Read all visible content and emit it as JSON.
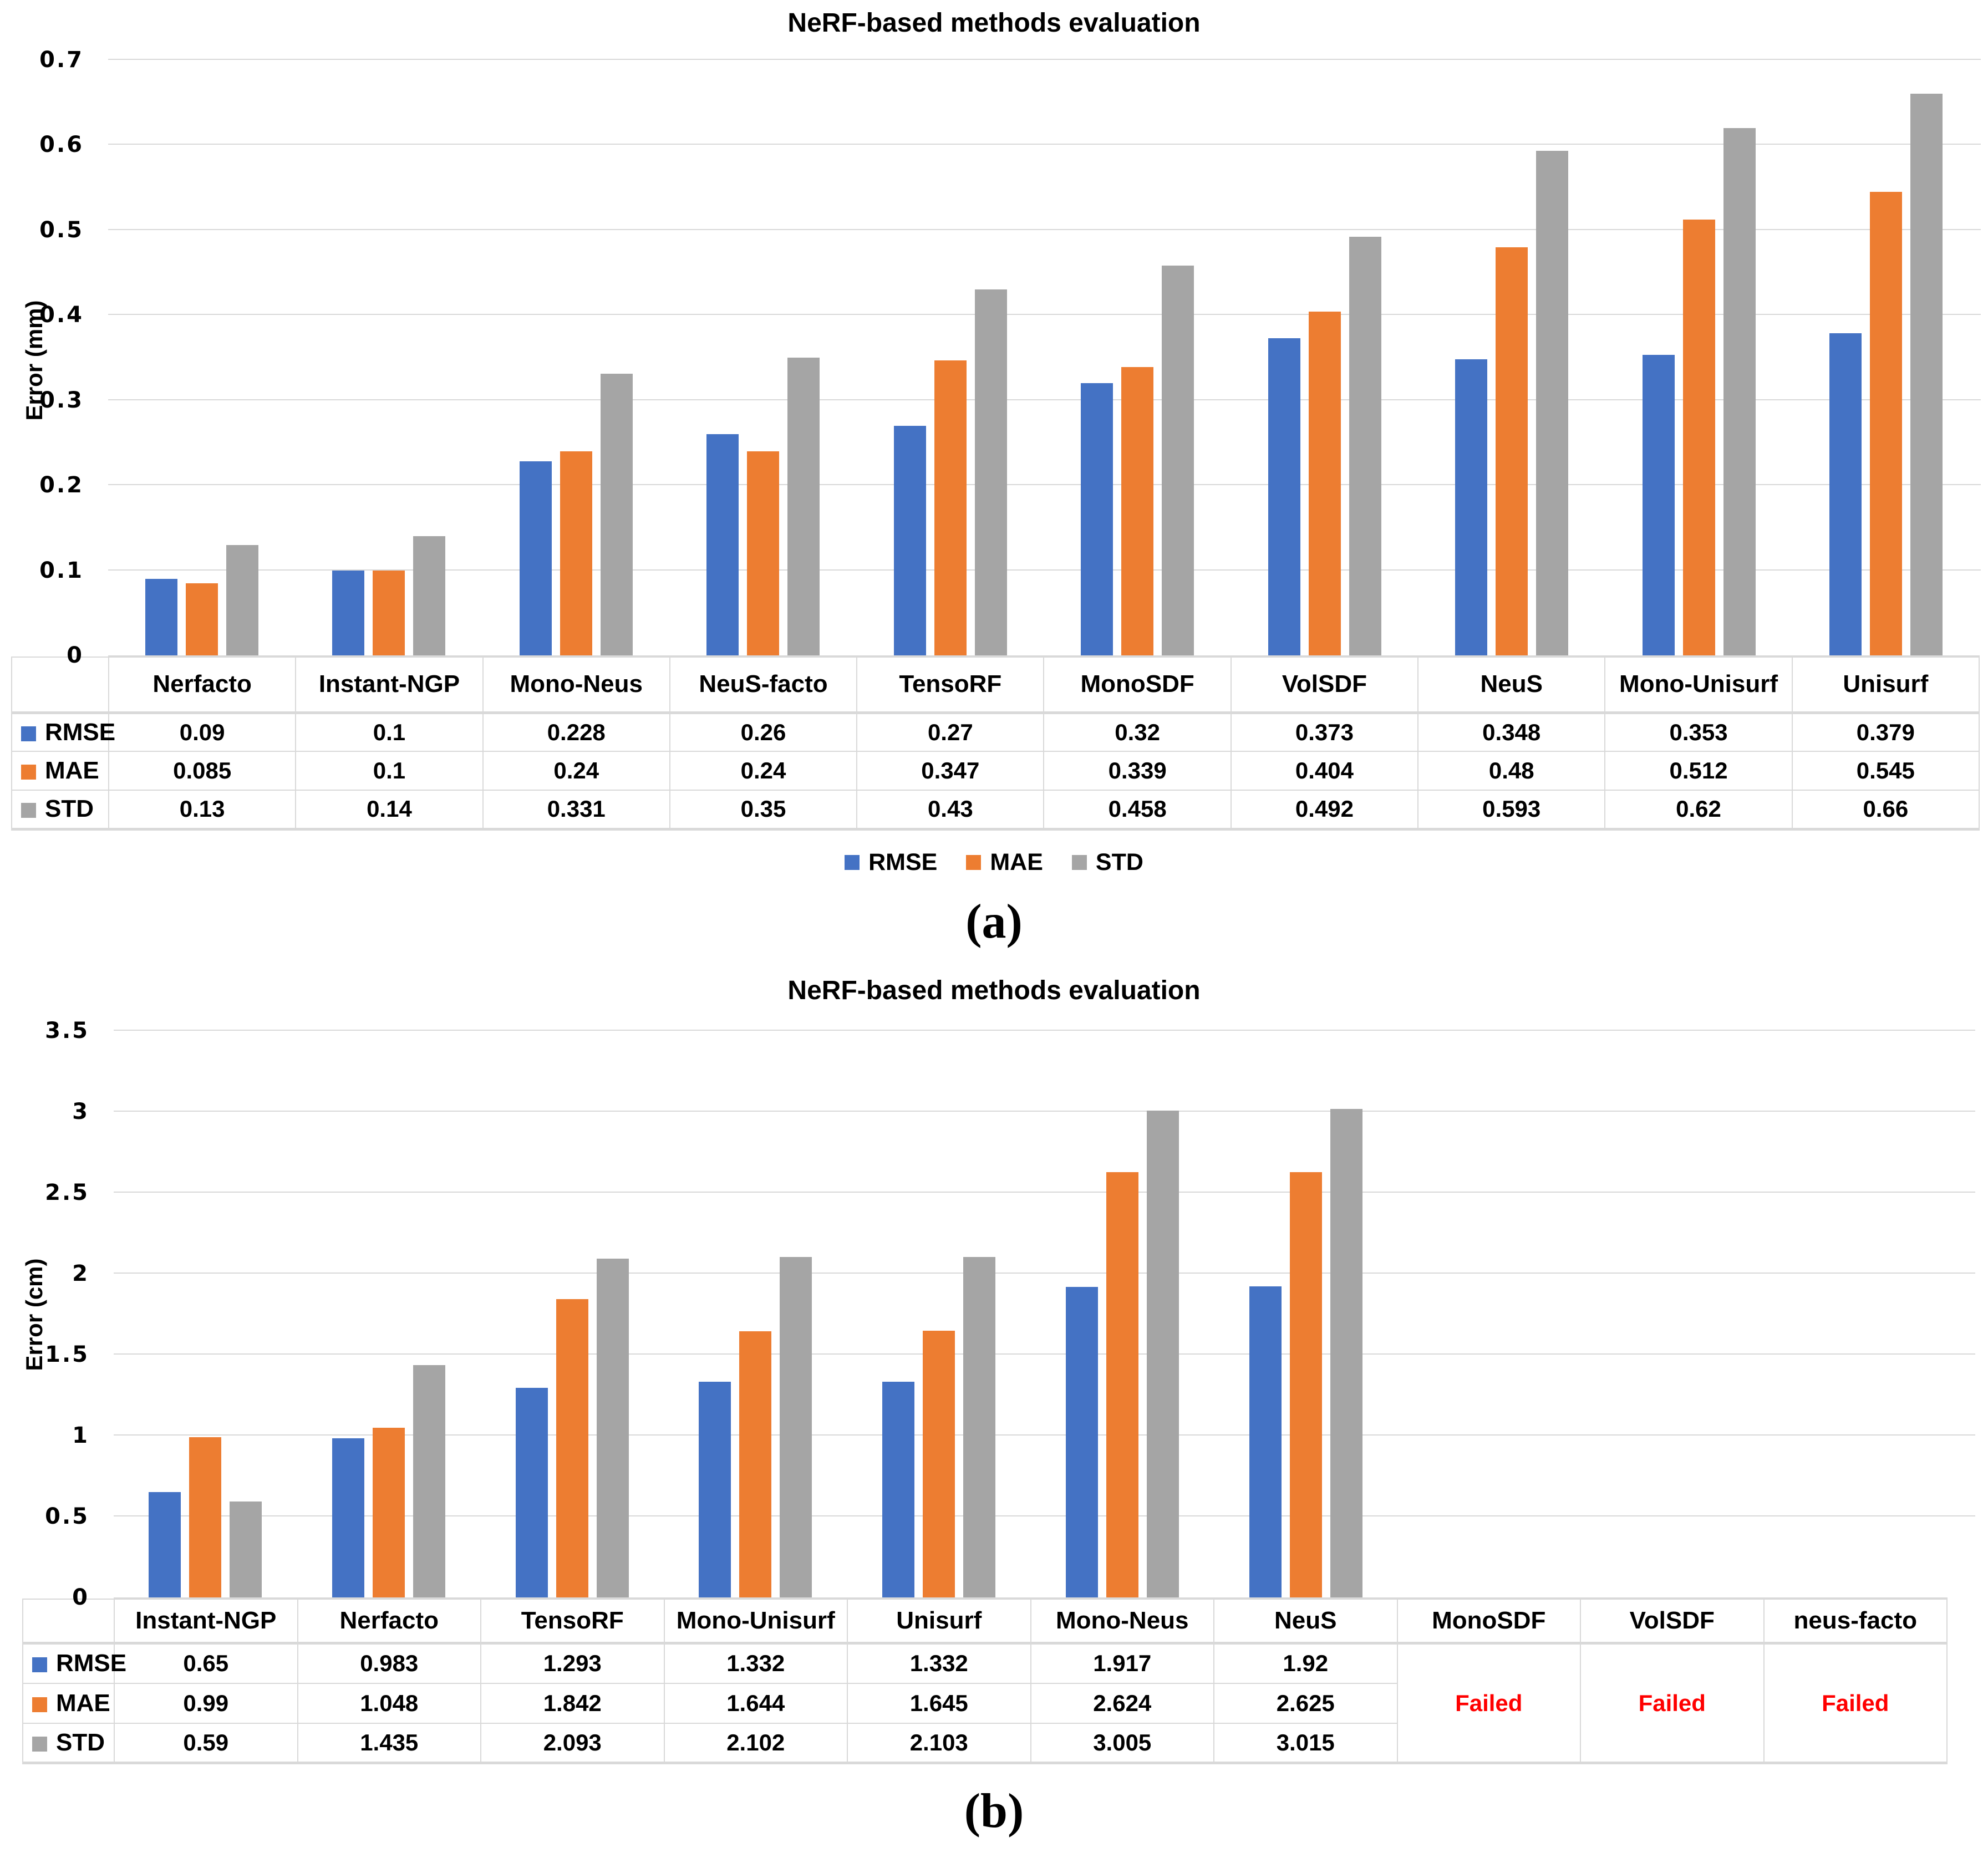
{
  "figure": {
    "panels": [
      {
        "caption": "(a)",
        "chart_data": {
          "type": "bar",
          "title": "NeRF-based methods evaluation",
          "xlabel": "",
          "ylabel": "Error (mm)",
          "ylim": [
            0,
            0.7
          ],
          "grid": true,
          "legend_position": "bottom",
          "yticks": [
            {
              "label": "0.7",
              "value": 0.7
            },
            {
              "label": "0.6",
              "value": 0.6
            },
            {
              "label": "0.5",
              "value": 0.5
            },
            {
              "label": "0.4",
              "value": 0.4
            },
            {
              "label": "0.3",
              "value": 0.3
            },
            {
              "label": "0.2",
              "value": 0.2
            },
            {
              "label": "0.1",
              "value": 0.1
            },
            {
              "label": "0",
              "value": 0
            }
          ],
          "categories": [
            "Nerfacto",
            "Instant-NGP",
            "Mono-Neus",
            "NeuS-facto",
            "TensoRF",
            "MonoSDF",
            "VolSDF",
            "NeuS",
            "Mono-Unisurf",
            "Unisurf"
          ],
          "series": [
            {
              "name": "RMSE",
              "color": "#4472C4",
              "values": [
                0.09,
                0.1,
                0.228,
                0.26,
                0.27,
                0.32,
                0.373,
                0.348,
                0.353,
                0.379
              ]
            },
            {
              "name": "MAE",
              "color": "#ED7D31",
              "values": [
                0.085,
                0.1,
                0.24,
                0.24,
                0.347,
                0.339,
                0.404,
                0.48,
                0.512,
                0.545
              ]
            },
            {
              "name": "STD",
              "color": "#A5A5A5",
              "values": [
                0.13,
                0.14,
                0.331,
                0.35,
                0.43,
                0.458,
                0.492,
                0.593,
                0.62,
                0.66
              ]
            }
          ]
        },
        "table": {
          "rows": [
            {
              "label": "RMSE",
              "color": "#4472C4",
              "cells": [
                "0.09",
                "0.1",
                "0.228",
                "0.26",
                "0.27",
                "0.32",
                "0.373",
                "0.348",
                "0.353",
                "0.379"
              ]
            },
            {
              "label": "MAE",
              "color": "#ED7D31",
              "cells": [
                "0.085",
                "0.1",
                "0.24",
                "0.24",
                "0.347",
                "0.339",
                "0.404",
                "0.48",
                "0.512",
                "0.545"
              ]
            },
            {
              "label": "STD",
              "color": "#A5A5A5",
              "cells": [
                "0.13",
                "0.14",
                "0.331",
                "0.35",
                "0.43",
                "0.458",
                "0.492",
                "0.593",
                "0.62",
                "0.66"
              ]
            }
          ]
        },
        "legend": {
          "items": [
            {
              "label": "RMSE",
              "color": "#4472C4"
            },
            {
              "label": "MAE",
              "color": "#ED7D31"
            },
            {
              "label": "STD",
              "color": "#A5A5A5"
            }
          ]
        }
      },
      {
        "caption": "(b)",
        "chart_data": {
          "type": "bar",
          "title": "NeRF-based methods evaluation",
          "xlabel": "",
          "ylabel": "Error (cm)",
          "ylim": [
            0,
            3.5
          ],
          "grid": true,
          "legend_position": "none",
          "yticks": [
            {
              "label": "3.5",
              "value": 3.5
            },
            {
              "label": "3",
              "value": 3
            },
            {
              "label": "2.5",
              "value": 2.5
            },
            {
              "label": "2",
              "value": 2
            },
            {
              "label": "1.5",
              "value": 1.5
            },
            {
              "label": "1",
              "value": 1
            },
            {
              "label": "0.5",
              "value": 0.5
            },
            {
              "label": "0",
              "value": 0
            }
          ],
          "categories": [
            "Instant-NGP",
            "Nerfacto",
            "TensoRF",
            "Mono-Unisurf",
            "Unisurf",
            "Mono-Neus",
            "NeuS",
            "MonoSDF",
            "VolSDF",
            "neus-facto"
          ],
          "series": [
            {
              "name": "RMSE",
              "color": "#4472C4",
              "values": [
                0.65,
                0.983,
                1.293,
                1.332,
                1.332,
                1.917,
                1.92,
                null,
                null,
                null
              ]
            },
            {
              "name": "MAE",
              "color": "#ED7D31",
              "values": [
                0.99,
                1.048,
                1.842,
                1.644,
                1.645,
                2.624,
                2.625,
                null,
                null,
                null
              ]
            },
            {
              "name": "STD",
              "color": "#A5A5A5",
              "values": [
                0.59,
                1.435,
                2.093,
                2.102,
                2.103,
                3.005,
                3.015,
                null,
                null,
                null
              ]
            }
          ]
        },
        "table": {
          "rows": [
            {
              "label": "RMSE",
              "color": "#4472C4",
              "cells": [
                "0.65",
                "0.983",
                "1.293",
                "1.332",
                "1.332",
                "1.917",
                "1.92"
              ]
            },
            {
              "label": "MAE",
              "color": "#ED7D31",
              "cells": [
                "0.99",
                "1.048",
                "1.842",
                "1.644",
                "1.645",
                "2.624",
                "2.625"
              ]
            },
            {
              "label": "STD",
              "color": "#A5A5A5",
              "cells": [
                "0.59",
                "1.435",
                "2.093",
                "2.102",
                "2.103",
                "3.005",
                "3.015"
              ]
            }
          ],
          "failed_cells": [
            {
              "column": "MonoSDF",
              "label": "Failed",
              "color": "#FF0000"
            },
            {
              "column": "VolSDF",
              "label": "Failed",
              "color": "#FF0000"
            },
            {
              "column": "neus-facto",
              "label": "Failed",
              "color": "#FF0000"
            }
          ]
        }
      }
    ]
  }
}
